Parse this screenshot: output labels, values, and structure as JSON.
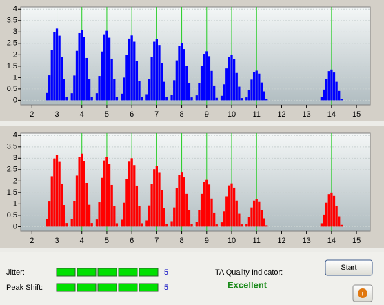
{
  "chart_data": [
    {
      "type": "bar",
      "color": "#0000ff",
      "refline_color": "#22cc22",
      "reference_lines": [
        3,
        4,
        5,
        6,
        7,
        8,
        9,
        10,
        11,
        14
      ],
      "xlim": [
        1.55,
        15.55
      ],
      "ylim": [
        -0.2,
        4.1
      ],
      "xticks": [
        2,
        3,
        4,
        5,
        6,
        7,
        8,
        9,
        10,
        11,
        12,
        13,
        14,
        15
      ],
      "yticks": [
        0,
        {
          "value": 0.5,
          "label": "0,5"
        },
        1,
        {
          "value": 1.5,
          "label": "1,5"
        },
        2,
        {
          "value": 2.5,
          "label": "2,5"
        },
        3,
        {
          "value": 3.5,
          "label": "3,5"
        },
        4
      ],
      "x": [
        2.6,
        2.7,
        2.8,
        2.9,
        3,
        3.1,
        3.2,
        3.3,
        3.4,
        3.6,
        3.7,
        3.8,
        3.9,
        4,
        4.1,
        4.2,
        4.3,
        4.4,
        4.6,
        4.7,
        4.8,
        4.9,
        5,
        5.1,
        5.2,
        5.3,
        5.4,
        5.6,
        5.7,
        5.8,
        5.9,
        6,
        6.1,
        6.2,
        6.3,
        6.4,
        6.6,
        6.7,
        6.8,
        6.9,
        7,
        7.1,
        7.2,
        7.3,
        7.4,
        7.6,
        7.7,
        7.8,
        7.9,
        8,
        8.1,
        8.2,
        8.3,
        8.4,
        8.6,
        8.7,
        8.8,
        8.9,
        9,
        9.1,
        9.2,
        9.3,
        9.4,
        9.6,
        9.7,
        9.8,
        9.9,
        10,
        10.1,
        10.2,
        10.3,
        10.4,
        10.6,
        10.7,
        10.8,
        10.9,
        11,
        11.1,
        11.2,
        11.3,
        11.4,
        13.6,
        13.7,
        13.8,
        13.9,
        14,
        14.1,
        14.2,
        14.3,
        14.4
      ],
      "values": [
        0.32,
        1.1,
        2.21,
        2.99,
        3.15,
        2.84,
        1.89,
        0.95,
        0.16,
        0.31,
        1.09,
        2.17,
        2.95,
        3.1,
        2.79,
        1.86,
        0.93,
        0.16,
        0.31,
        1.07,
        2.14,
        2.9,
        3.05,
        2.75,
        1.83,
        0.92,
        0.15,
        0.29,
        1.0,
        2.0,
        2.71,
        2.85,
        2.57,
        1.71,
        0.86,
        0.14,
        0.27,
        0.95,
        1.89,
        2.57,
        2.7,
        2.43,
        1.62,
        0.81,
        0.14,
        0.25,
        0.88,
        1.75,
        2.38,
        2.5,
        2.25,
        1.5,
        0.75,
        0.13,
        0.22,
        0.75,
        1.51,
        2.04,
        2.15,
        1.94,
        1.29,
        0.65,
        0.11,
        0.2,
        0.7,
        1.4,
        1.9,
        2.0,
        1.8,
        1.2,
        0.6,
        0.1,
        0.13,
        0.46,
        0.91,
        1.24,
        1.3,
        1.17,
        0.78,
        0.39,
        0.07,
        0.14,
        0.47,
        0.95,
        1.28,
        1.35,
        1.22,
        0.81,
        0.41,
        0.07
      ]
    },
    {
      "type": "bar",
      "color": "#ff0000",
      "refline_color": "#22cc22",
      "reference_lines": [
        3,
        4,
        5,
        6,
        7,
        8,
        9,
        10,
        11,
        14
      ],
      "xlim": [
        1.55,
        15.55
      ],
      "ylim": [
        -0.2,
        4.1
      ],
      "xticks": [
        2,
        3,
        4,
        5,
        6,
        7,
        8,
        9,
        10,
        11,
        12,
        13,
        14,
        15
      ],
      "yticks": [
        0,
        {
          "value": 0.5,
          "label": "0,5"
        },
        1,
        {
          "value": 1.5,
          "label": "1,5"
        },
        2,
        {
          "value": 2.5,
          "label": "2,5"
        },
        3,
        {
          "value": 3.5,
          "label": "3,5"
        },
        4
      ],
      "x": [
        2.6,
        2.7,
        2.8,
        2.9,
        3,
        3.1,
        3.2,
        3.3,
        3.4,
        3.6,
        3.7,
        3.8,
        3.9,
        4,
        4.1,
        4.2,
        4.3,
        4.4,
        4.6,
        4.7,
        4.8,
        4.9,
        5,
        5.1,
        5.2,
        5.3,
        5.4,
        5.6,
        5.7,
        5.8,
        5.9,
        6,
        6.1,
        6.2,
        6.3,
        6.4,
        6.6,
        6.7,
        6.8,
        6.9,
        7,
        7.1,
        7.2,
        7.3,
        7.4,
        7.6,
        7.7,
        7.8,
        7.9,
        8,
        8.1,
        8.2,
        8.3,
        8.4,
        8.6,
        8.7,
        8.8,
        8.9,
        9,
        9.1,
        9.2,
        9.3,
        9.4,
        9.6,
        9.7,
        9.8,
        9.9,
        10,
        10.1,
        10.2,
        10.3,
        10.4,
        10.6,
        10.7,
        10.8,
        10.9,
        11,
        11.1,
        11.2,
        11.3,
        11.4,
        13.6,
        13.7,
        13.8,
        13.9,
        14,
        14.1,
        14.2,
        14.3,
        14.4
      ],
      "values": [
        0.32,
        1.1,
        2.21,
        2.99,
        3.15,
        2.84,
        1.89,
        0.95,
        0.16,
        0.32,
        1.12,
        2.24,
        3.04,
        3.2,
        2.88,
        1.92,
        0.96,
        0.16,
        0.31,
        1.07,
        2.14,
        2.9,
        3.05,
        2.75,
        1.83,
        0.92,
        0.15,
        0.3,
        1.05,
        2.1,
        2.85,
        3.0,
        2.7,
        1.8,
        0.9,
        0.15,
        0.27,
        0.93,
        1.86,
        2.52,
        2.65,
        2.39,
        1.59,
        0.8,
        0.13,
        0.24,
        0.84,
        1.68,
        2.28,
        2.4,
        2.16,
        1.44,
        0.72,
        0.12,
        0.21,
        0.72,
        1.44,
        1.95,
        2.05,
        1.85,
        1.23,
        0.62,
        0.1,
        0.19,
        0.67,
        1.33,
        1.81,
        1.9,
        1.71,
        1.14,
        0.57,
        0.1,
        0.12,
        0.42,
        0.84,
        1.14,
        1.2,
        1.08,
        0.72,
        0.36,
        0.06,
        0.15,
        0.53,
        1.05,
        1.43,
        1.5,
        1.35,
        0.9,
        0.45,
        0.08
      ]
    }
  ],
  "controls": {
    "jitter": {
      "label": "Jitter:",
      "value": 5,
      "segments": 5
    },
    "peak_shift": {
      "label": "Peak Shift:",
      "value": 5,
      "segments": 5
    },
    "ta_quality": {
      "label": "TA Quality Indicator:",
      "result": "Excellent"
    },
    "start_button": "Start"
  }
}
